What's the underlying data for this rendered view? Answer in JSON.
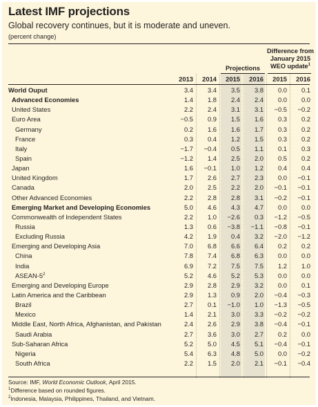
{
  "title": "Latest IMF projections",
  "subtitle": "Global recovery continues, but it is moderate and uneven.",
  "unit": "(percent change)",
  "group_projections": "Projections",
  "group_difference": [
    "Difference from",
    "January 2015",
    "WEO update"
  ],
  "group_difference_sup": "1",
  "years": [
    "2013",
    "2014",
    "2015",
    "2016",
    "2015",
    "2016"
  ],
  "rows": [
    {
      "label": "World Ouput",
      "level": 0,
      "bold": true,
      "values": [
        "3.4",
        "3.4",
        "3.5",
        "3.8",
        "0.0",
        "0.1"
      ]
    },
    {
      "label": "Advanced Economies",
      "level": 1,
      "bold": true,
      "values": [
        "1.4",
        "1.8",
        "2.4",
        "2.4",
        "0.0",
        "0.0"
      ]
    },
    {
      "label": "United States",
      "level": 1,
      "bold": false,
      "values": [
        "2.2",
        "2.4",
        "3.1",
        "3.1",
        "−0.5",
        "−0.2"
      ]
    },
    {
      "label": "Euro Area",
      "level": 1,
      "bold": false,
      "values": [
        "−0.5",
        "0.9",
        "1.5",
        "1.6",
        "0.3",
        "0.2"
      ]
    },
    {
      "label": "Germany",
      "level": 2,
      "bold": false,
      "values": [
        "0.2",
        "1.6",
        "1.6",
        "1.7",
        "0.3",
        "0.2"
      ]
    },
    {
      "label": "France",
      "level": 2,
      "bold": false,
      "values": [
        "0.3",
        "0.4",
        "1.2",
        "1.5",
        "0.3",
        "0.2"
      ]
    },
    {
      "label": "Italy",
      "level": 2,
      "bold": false,
      "values": [
        "−1.7",
        "−0.4",
        "0.5",
        "1.1",
        "0.1",
        "0.3"
      ]
    },
    {
      "label": "Spain",
      "level": 2,
      "bold": false,
      "values": [
        "−1.2",
        "1.4",
        "2.5",
        "2.0",
        "0.5",
        "0.2"
      ]
    },
    {
      "label": "Japan",
      "level": 1,
      "bold": false,
      "values": [
        "1.6",
        "−0.1",
        "1.0",
        "1.2",
        "0.4",
        "0.4"
      ]
    },
    {
      "label": "United Kingdom",
      "level": 1,
      "bold": false,
      "values": [
        "1.7",
        "2.6",
        "2.7",
        "2.3",
        "0.0",
        "−0.1"
      ]
    },
    {
      "label": "Canada",
      "level": 1,
      "bold": false,
      "values": [
        "2.0",
        "2.5",
        "2.2",
        "2.0",
        "−0.1",
        "−0.1"
      ]
    },
    {
      "label": "Other Advanced Economies",
      "level": 1,
      "bold": false,
      "values": [
        "2.2",
        "2.8",
        "2.8",
        "3.1",
        "−0.2",
        "−0.1"
      ]
    },
    {
      "label": "Emerging Market and Developing Economies",
      "level": 1,
      "bold": true,
      "values": [
        "5.0",
        "4.6",
        "4.3",
        "4.7",
        "0.0",
        "0.0"
      ]
    },
    {
      "label": "Commonwealth of Independent States",
      "level": 1,
      "bold": false,
      "values": [
        "2.2",
        "1.0",
        "−2.6",
        "0.3",
        "−1.2",
        "−0.5"
      ]
    },
    {
      "label": "Russia",
      "level": 2,
      "bold": false,
      "values": [
        "1.3",
        "0.6",
        "−3.8",
        "−1.1",
        "−0.8",
        "−0.1"
      ]
    },
    {
      "label": "Excluding Russia",
      "level": 2,
      "bold": false,
      "values": [
        "4.2",
        "1.9",
        "0.4",
        "3.2",
        "−2.0",
        "−1.2"
      ]
    },
    {
      "label": "Emerging and Developing Asia",
      "level": 1,
      "bold": false,
      "values": [
        "7.0",
        "6.8",
        "6.6",
        "6.4",
        "0.2",
        "0.2"
      ]
    },
    {
      "label": "China",
      "level": 2,
      "bold": false,
      "values": [
        "7.8",
        "7.4",
        "6.8",
        "6.3",
        "0.0",
        "0.0"
      ]
    },
    {
      "label": "India",
      "level": 2,
      "bold": false,
      "values": [
        "6.9",
        "7.2",
        "7.5",
        "7.5",
        "1.2",
        "1.0"
      ]
    },
    {
      "label": "ASEAN-5",
      "sup": "2",
      "level": 2,
      "bold": false,
      "values": [
        "5.2",
        "4.6",
        "5.2",
        "5.3",
        "0.0",
        "0.0"
      ]
    },
    {
      "label": "Emerging and Developing Europe",
      "level": 1,
      "bold": false,
      "values": [
        "2.9",
        "2.8",
        "2.9",
        "3.2",
        "0.0",
        "0.1"
      ]
    },
    {
      "label": "Latin America and the Caribbean",
      "level": 1,
      "bold": false,
      "values": [
        "2.9",
        "1.3",
        "0.9",
        "2.0",
        "−0.4",
        "−0.3"
      ]
    },
    {
      "label": "Brazil",
      "level": 2,
      "bold": false,
      "values": [
        "2.7",
        "0.1",
        "−1.0",
        "1.0",
        "−1.3",
        "−0.5"
      ]
    },
    {
      "label": "Mexico",
      "level": 2,
      "bold": false,
      "values": [
        "1.4",
        "2.1",
        "3.0",
        "3.3",
        "−0.2",
        "−0.2"
      ]
    },
    {
      "label": "Middle East, North Africa, Afghanistan, and Pakistan",
      "level": 1,
      "bold": false,
      "values": [
        "2.4",
        "2.6",
        "2.9",
        "3.8",
        "−0.4",
        "−0.1"
      ]
    },
    {
      "label": "Saudi Arabia",
      "level": 2,
      "bold": false,
      "values": [
        "2.7",
        "3.6",
        "3.0",
        "2.7",
        "0.2",
        "0.0"
      ]
    },
    {
      "label": "Sub-Saharan Africa",
      "level": 1,
      "bold": false,
      "values": [
        "5.2",
        "5.0",
        "4.5",
        "5.1",
        "−0.4",
        "−0.1"
      ]
    },
    {
      "label": "Nigeria",
      "level": 2,
      "bold": false,
      "values": [
        "5.4",
        "6.3",
        "4.8",
        "5.0",
        "0.0",
        "−0.2"
      ]
    },
    {
      "label": "South Africa",
      "level": 2,
      "bold": false,
      "values": [
        "2.2",
        "1.5",
        "2.0",
        "2.1",
        "−0.1",
        "−0.4"
      ]
    }
  ],
  "footer": {
    "source_prefix": "Source: IMF, ",
    "source_title": "World Economic Outlook",
    "source_suffix": ", April 2015.",
    "note1_sup": "1",
    "note1": "Difference based on rounded figures.",
    "note2_sup": "2",
    "note2": "Indonesia, Malaysia, Philippines, Thailand, and Vietnam."
  },
  "colors": {
    "panel": "#fdf6dc",
    "shade": "#e6e2cf",
    "text": "#231f20"
  }
}
